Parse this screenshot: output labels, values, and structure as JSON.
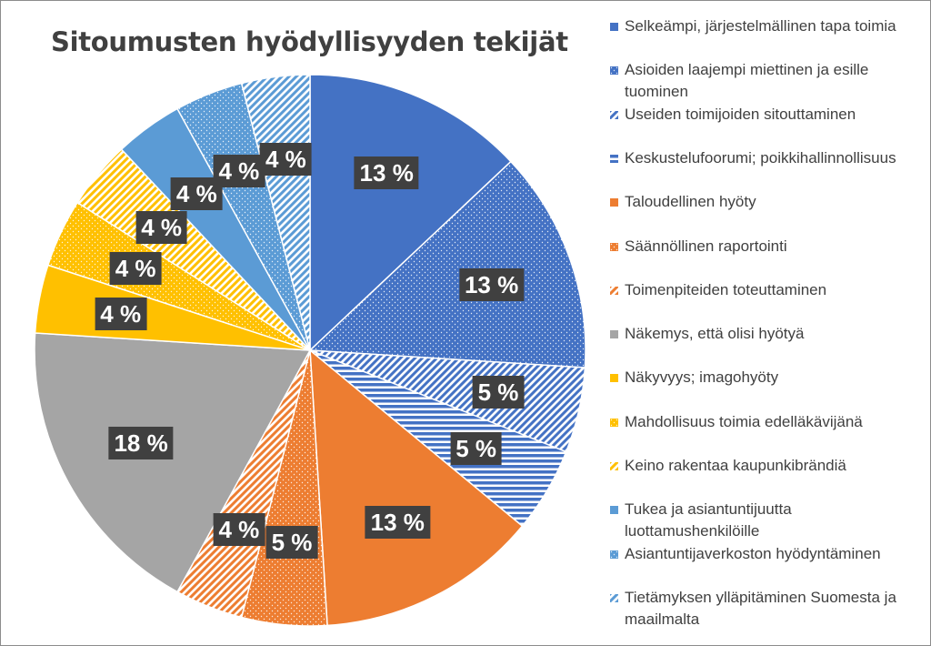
{
  "chart_data": {
    "type": "pie",
    "title": "Sitoumusten hyödyllisyyden tekijät",
    "legend_position": "right",
    "slices": [
      {
        "label": "Selkeämpi, järjestelmällinen tapa toimia",
        "value": 13,
        "display": "13 %",
        "color": "#4472C4",
        "pattern": "solid"
      },
      {
        "label": "Asioiden laajempi miettinen ja esille tuominen",
        "value": 13,
        "display": "13 %",
        "color": "#4472C4",
        "pattern": "dots"
      },
      {
        "label": "Useiden toimijoiden sitouttaminen",
        "value": 5,
        "display": "5 %",
        "color": "#4472C4",
        "pattern": "diagonal"
      },
      {
        "label": "Keskustelufoorumi; poikkihallinnollisuus",
        "value": 5,
        "display": "5 %",
        "color": "#4472C4",
        "pattern": "horizontal"
      },
      {
        "label": "Taloudellinen hyöty",
        "value": 13,
        "display": "13 %",
        "color": "#ED7D31",
        "pattern": "solid"
      },
      {
        "label": "Säännöllinen raportointi",
        "value": 5,
        "display": "5 %",
        "color": "#ED7D31",
        "pattern": "dots"
      },
      {
        "label": "Toimenpiteiden toteuttaminen",
        "value": 4,
        "display": "4 %",
        "color": "#ED7D31",
        "pattern": "diagonal"
      },
      {
        "label": "Näkemys, että olisi hyötyä",
        "value": 18,
        "display": "18 %",
        "color": "#A5A5A5",
        "pattern": "solid"
      },
      {
        "label": "Näkyvyys; imagohyöty",
        "value": 4,
        "display": "4 %",
        "color": "#FFC000",
        "pattern": "solid"
      },
      {
        "label": "Mahdollisuus toimia edelläkävijänä",
        "value": 4,
        "display": "4 %",
        "color": "#FFC000",
        "pattern": "dots"
      },
      {
        "label": "Keino rakentaa kaupunkibrändiä",
        "value": 4,
        "display": "4 %",
        "color": "#FFC000",
        "pattern": "diagonal"
      },
      {
        "label": "Tukea ja asiantuntijuutta luottamushenkilöille",
        "value": 4,
        "display": "4 %",
        "color": "#5B9BD5",
        "pattern": "solid"
      },
      {
        "label": "Asiantuntijaverkoston hyödyntäminen",
        "value": 4,
        "display": "4 %",
        "color": "#5B9BD5",
        "pattern": "dots"
      },
      {
        "label": "Tietämyksen ylläpitäminen Suomesta ja maailmalta",
        "value": 4,
        "display": "4 %",
        "color": "#5B9BD5",
        "pattern": "diagonal"
      }
    ]
  }
}
